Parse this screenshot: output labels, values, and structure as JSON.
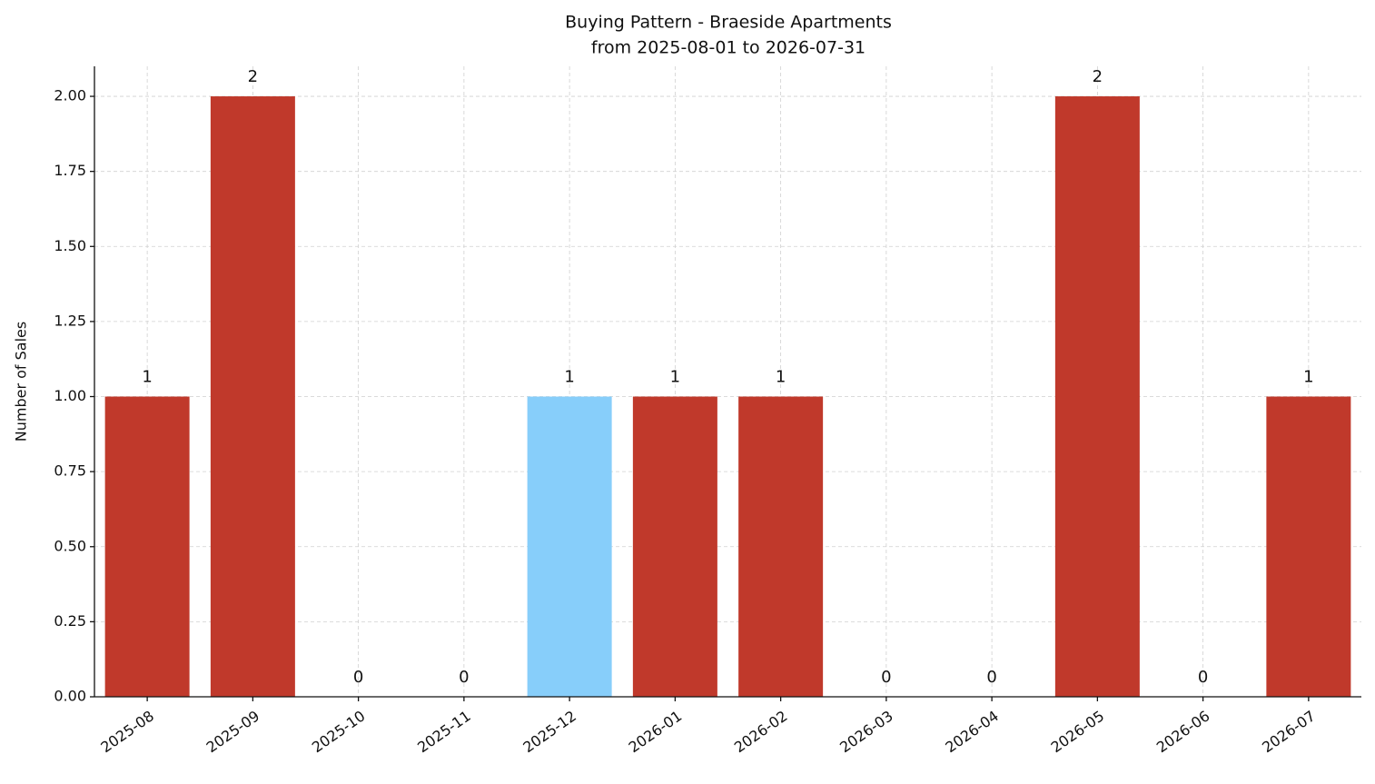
{
  "chart_data": {
    "type": "bar",
    "title": "Buying Pattern - Braeside Apartments",
    "subtitle": "from 2025-08-01 to 2026-07-31",
    "y_label": "Number of Sales",
    "categories": [
      "2025-08",
      "2025-09",
      "2025-10",
      "2025-11",
      "2025-12",
      "2026-01",
      "2026-02",
      "2026-03",
      "2026-04",
      "2026-05",
      "2026-06",
      "2026-07"
    ],
    "values": [
      1,
      2,
      0,
      0,
      1,
      1,
      1,
      0,
      0,
      2,
      0,
      1
    ],
    "colors": [
      "#c0392b",
      "#c0392b",
      "#c0392b",
      "#c0392b",
      "#87cefa",
      "#c0392b",
      "#c0392b",
      "#c0392b",
      "#c0392b",
      "#c0392b",
      "#c0392b",
      "#c0392b"
    ],
    "ylim": [
      0,
      2.1
    ],
    "yticks": [
      {
        "value": 0,
        "label": "0.00"
      },
      {
        "value": 0.25,
        "label": "0.25"
      },
      {
        "value": 0.5,
        "label": "0.50"
      },
      {
        "value": 0.75,
        "label": "0.75"
      },
      {
        "value": 1,
        "label": "1.00"
      },
      {
        "value": 1.25,
        "label": "1.25"
      },
      {
        "value": 1.5,
        "label": "1.50"
      },
      {
        "value": 1.75,
        "label": "1.75"
      },
      {
        "value": 2,
        "label": "2.00"
      }
    ],
    "grid": true
  }
}
